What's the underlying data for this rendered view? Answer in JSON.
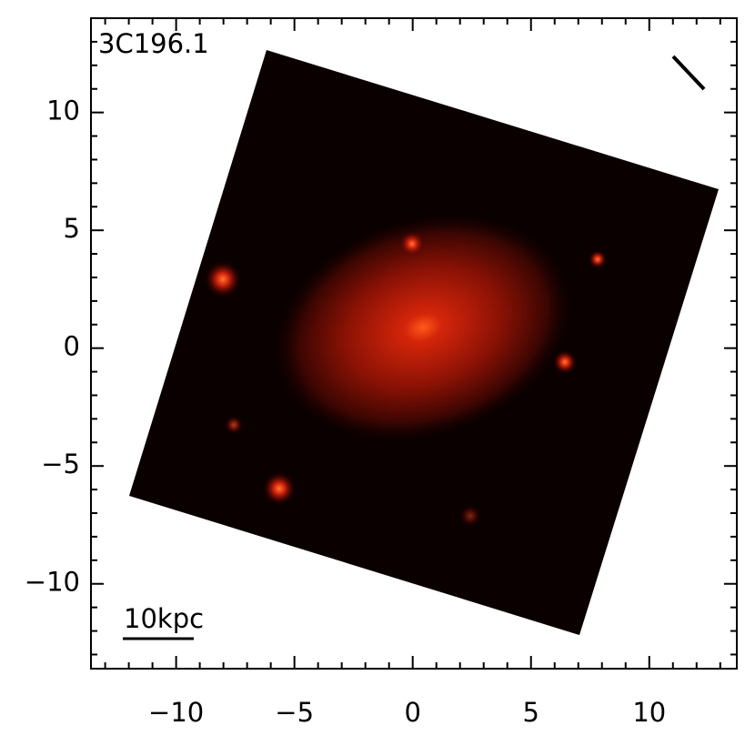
{
  "chart_data": {
    "type": "image",
    "title": "3C196.1",
    "annotation": "10kpc",
    "xlim": [
      -13.6,
      13.7
    ],
    "ylim": [
      -13.6,
      14.0
    ],
    "xticks": [
      {
        "value": -10,
        "label": "−10"
      },
      {
        "value": -5,
        "label": "−5"
      },
      0,
      5,
      10
    ],
    "yticks": [
      {
        "value": -10,
        "label": "−10"
      },
      {
        "value": -5,
        "label": "−5"
      },
      0,
      5,
      10
    ],
    "xminorticks": [
      -13,
      -12,
      -11,
      -9,
      -8,
      -7,
      -6,
      -4,
      -3,
      -2,
      -1,
      1,
      2,
      3,
      4,
      6,
      7,
      8,
      9,
      11,
      12,
      13
    ],
    "yminorticks": [
      -13,
      -12,
      -11,
      -9,
      -8,
      -7,
      -6,
      -4,
      -3,
      -2,
      -1,
      1,
      2,
      3,
      4,
      6,
      7,
      8,
      9,
      11,
      12,
      13
    ]
  }
}
